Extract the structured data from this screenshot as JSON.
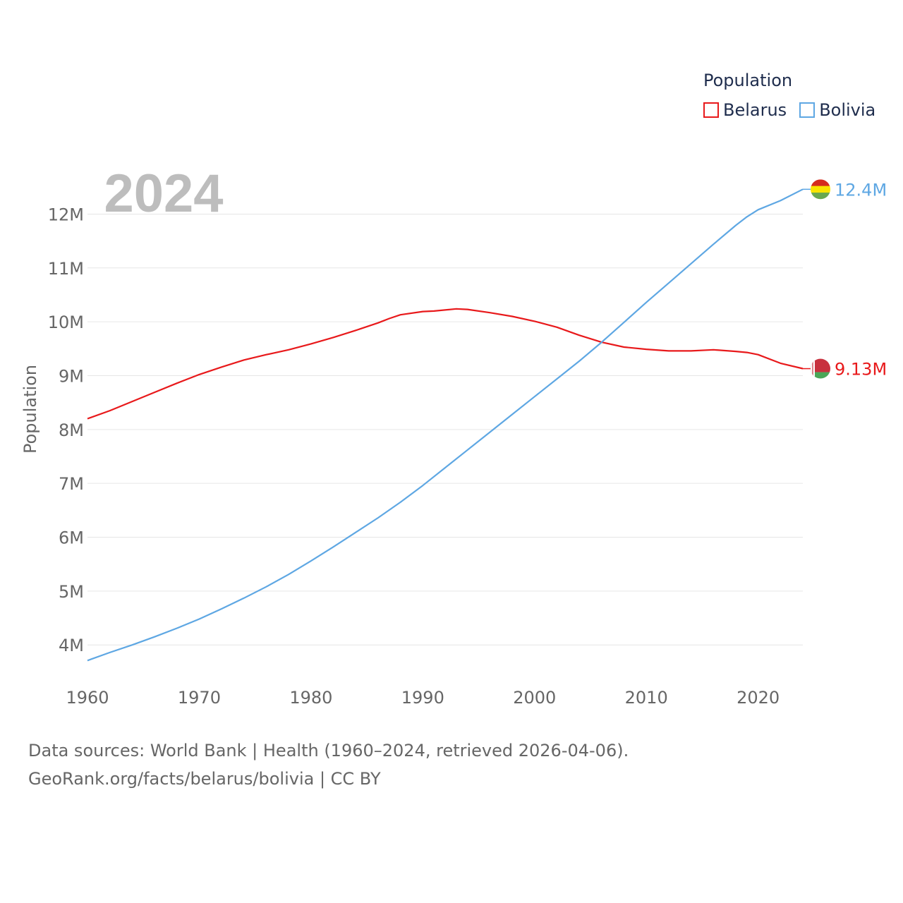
{
  "legend": {
    "title": "Population",
    "items": [
      {
        "label": "Belarus",
        "color": "#e8191b"
      },
      {
        "label": "Bolivia",
        "color": "#5ea7e3"
      }
    ]
  },
  "source": {
    "line1": "Data sources: World Bank | Health (1960–2024, retrieved 2026-04-06).",
    "line2": "GeoRank.org/facts/belarus/bolivia | CC BY"
  },
  "chart_data": {
    "type": "line",
    "title": "Population",
    "year_label": "2024",
    "xlabel": "",
    "ylabel": "Population",
    "xlim": [
      1960,
      2024
    ],
    "ylim": [
      3400000,
      12700000
    ],
    "x_ticks": [
      1960,
      1970,
      1980,
      1990,
      2000,
      2010,
      2020
    ],
    "y_ticks": [
      {
        "value": 4000000,
        "label": "4M"
      },
      {
        "value": 5000000,
        "label": "5M"
      },
      {
        "value": 6000000,
        "label": "6M"
      },
      {
        "value": 7000000,
        "label": "7M"
      },
      {
        "value": 8000000,
        "label": "8M"
      },
      {
        "value": 9000000,
        "label": "9M"
      },
      {
        "value": 10000000,
        "label": "10M"
      },
      {
        "value": 11000000,
        "label": "11M"
      },
      {
        "value": 12000000,
        "label": "12M"
      }
    ],
    "grid": true,
    "series": [
      {
        "name": "Belarus",
        "color": "#e8191b",
        "end_label": "9.13M",
        "flag": "belarus-flag-icon",
        "points": [
          [
            1960,
            8200000
          ],
          [
            1962,
            8350000
          ],
          [
            1964,
            8520000
          ],
          [
            1966,
            8690000
          ],
          [
            1968,
            8860000
          ],
          [
            1970,
            9020000
          ],
          [
            1972,
            9160000
          ],
          [
            1974,
            9290000
          ],
          [
            1976,
            9390000
          ],
          [
            1978,
            9480000
          ],
          [
            1980,
            9590000
          ],
          [
            1982,
            9710000
          ],
          [
            1984,
            9840000
          ],
          [
            1986,
            9980000
          ],
          [
            1987,
            10060000
          ],
          [
            1988,
            10130000
          ],
          [
            1990,
            10190000
          ],
          [
            1991,
            10200000
          ],
          [
            1993,
            10240000
          ],
          [
            1994,
            10230000
          ],
          [
            1996,
            10170000
          ],
          [
            1998,
            10100000
          ],
          [
            2000,
            10010000
          ],
          [
            2002,
            9900000
          ],
          [
            2004,
            9750000
          ],
          [
            2006,
            9620000
          ],
          [
            2008,
            9530000
          ],
          [
            2010,
            9490000
          ],
          [
            2012,
            9460000
          ],
          [
            2014,
            9460000
          ],
          [
            2016,
            9480000
          ],
          [
            2018,
            9450000
          ],
          [
            2019,
            9430000
          ],
          [
            2020,
            9390000
          ],
          [
            2022,
            9230000
          ],
          [
            2024,
            9130000
          ]
        ]
      },
      {
        "name": "Bolivia",
        "color": "#5ea7e3",
        "end_label": "12.4M",
        "flag": "bolivia-flag-icon",
        "points": [
          [
            1960,
            3710000
          ],
          [
            1962,
            3860000
          ],
          [
            1964,
            4000000
          ],
          [
            1966,
            4150000
          ],
          [
            1968,
            4310000
          ],
          [
            1970,
            4480000
          ],
          [
            1972,
            4670000
          ],
          [
            1974,
            4870000
          ],
          [
            1976,
            5080000
          ],
          [
            1978,
            5310000
          ],
          [
            1980,
            5560000
          ],
          [
            1982,
            5820000
          ],
          [
            1984,
            6090000
          ],
          [
            1986,
            6360000
          ],
          [
            1988,
            6650000
          ],
          [
            1990,
            6960000
          ],
          [
            1992,
            7290000
          ],
          [
            1994,
            7620000
          ],
          [
            1996,
            7950000
          ],
          [
            1998,
            8280000
          ],
          [
            2000,
            8610000
          ],
          [
            2002,
            8940000
          ],
          [
            2004,
            9270000
          ],
          [
            2006,
            9620000
          ],
          [
            2008,
            9990000
          ],
          [
            2010,
            10360000
          ],
          [
            2012,
            10720000
          ],
          [
            2014,
            11080000
          ],
          [
            2016,
            11440000
          ],
          [
            2018,
            11790000
          ],
          [
            2019,
            11950000
          ],
          [
            2020,
            12080000
          ],
          [
            2022,
            12250000
          ],
          [
            2024,
            12460000
          ]
        ]
      }
    ]
  }
}
